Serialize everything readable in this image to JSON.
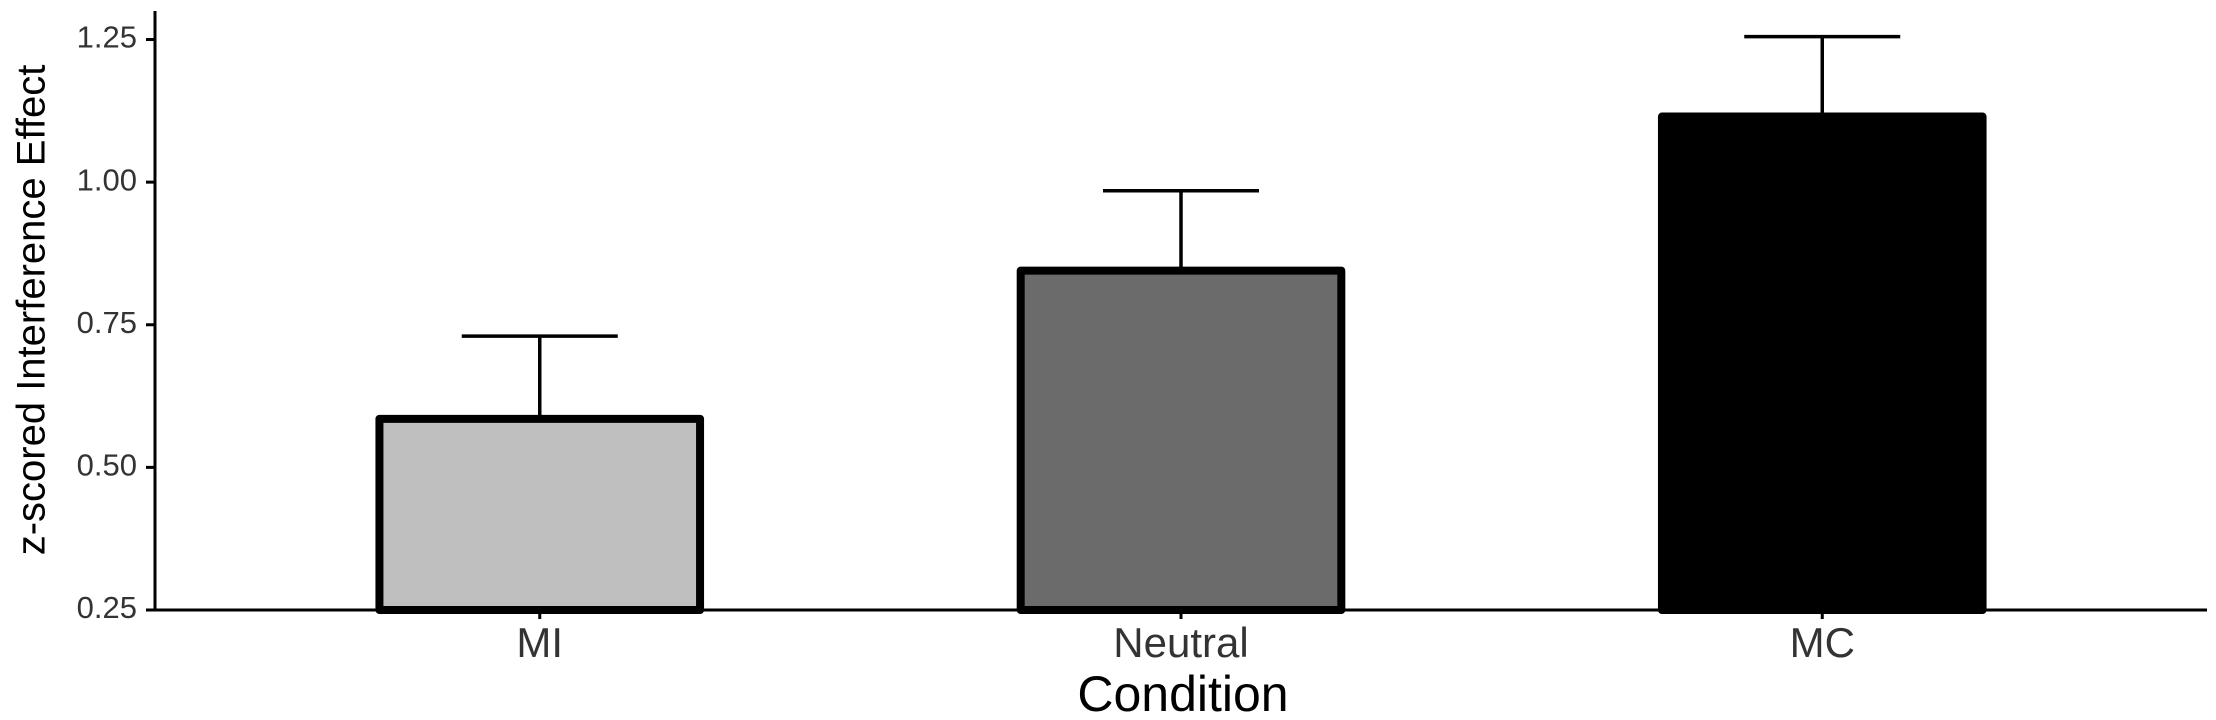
{
  "chart_data": {
    "type": "bar",
    "x_label": "Condition",
    "y_label": "z-scored Interference Effect",
    "categories": [
      "MI",
      "Neutral",
      "MC"
    ],
    "values": [
      0.585,
      0.845,
      1.115
    ],
    "errors": [
      0.145,
      0.14,
      0.14
    ],
    "colors": [
      "#bfbfbf",
      "#6b6b6b",
      "#000000"
    ],
    "ylim": [
      0.25,
      1.3
    ],
    "yticks": [
      0.25,
      {
        "value": 0.5,
        "label": "0.50"
      },
      0.75,
      {
        "value": 1,
        "label": "1.00"
      },
      1.25
    ]
  }
}
